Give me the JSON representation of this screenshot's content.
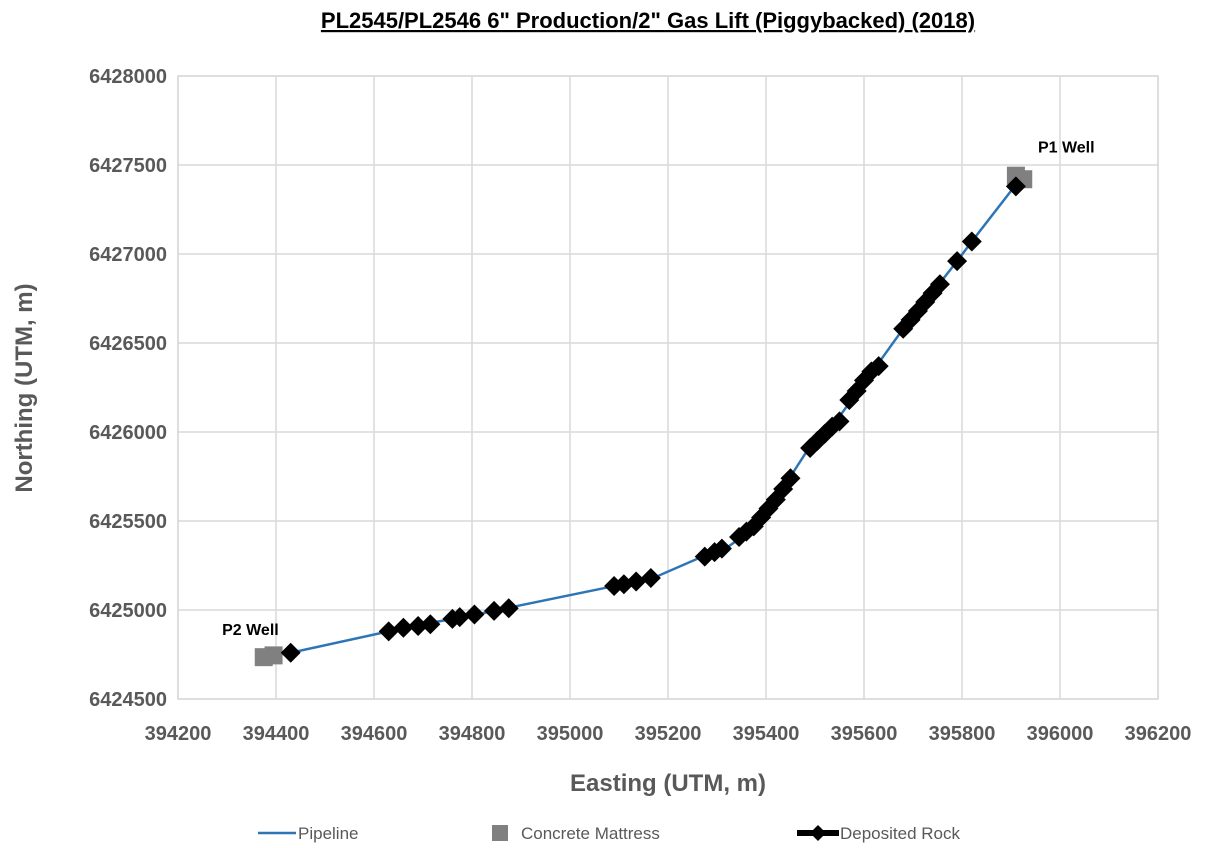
{
  "chart_data": {
    "type": "scatter",
    "title": "PL2545/PL2546 6\" Production/2\" Gas Lift (Piggybacked) (2018)",
    "xlabel": "Easting (UTM, m)",
    "ylabel": "Northing (UTM, m)",
    "xlim": [
      394200,
      396200
    ],
    "ylim": [
      6424500,
      6428000
    ],
    "xticks": [
      394200,
      394400,
      394600,
      394800,
      395000,
      395200,
      395400,
      395600,
      395800,
      396000,
      396200
    ],
    "yticks": [
      6424500,
      6425000,
      6425500,
      6426000,
      6426500,
      6427000,
      6427500,
      6428000
    ],
    "grid": true,
    "legend_position": "bottom",
    "series": [
      {
        "name": "Pipeline",
        "kind": "line",
        "color": "#2E75B6",
        "points": [
          [
            394380,
            6424740
          ],
          [
            394430,
            6424760
          ],
          [
            394630,
            6424880
          ],
          [
            394700,
            6424920
          ],
          [
            394800,
            6424970
          ],
          [
            394870,
            6425010
          ],
          [
            395100,
            6425140
          ],
          [
            395170,
            6425180
          ],
          [
            395270,
            6425300
          ],
          [
            395320,
            6425350
          ],
          [
            395370,
            6425450
          ],
          [
            395410,
            6425580
          ],
          [
            395450,
            6425750
          ],
          [
            395490,
            6425920
          ],
          [
            395540,
            6426050
          ],
          [
            395580,
            6426200
          ],
          [
            395620,
            6426350
          ],
          [
            395680,
            6426580
          ],
          [
            395720,
            6426700
          ],
          [
            395750,
            6426820
          ],
          [
            395790,
            6426960
          ],
          [
            395820,
            6427070
          ],
          [
            395910,
            6427390
          ]
        ]
      },
      {
        "name": "Concrete Mattress",
        "kind": "marker",
        "marker": "square",
        "color": "#808080",
        "points": [
          [
            394375,
            6424735
          ],
          [
            394395,
            6424745
          ],
          [
            395910,
            6427440
          ],
          [
            395925,
            6427420
          ]
        ]
      },
      {
        "name": "Deposited Rock",
        "kind": "marker",
        "marker": "diamond",
        "color": "#000000",
        "points": [
          [
            394430,
            6424760
          ],
          [
            394630,
            6424880
          ],
          [
            394660,
            6424900
          ],
          [
            394690,
            6424910
          ],
          [
            394715,
            6424920
          ],
          [
            394760,
            6424950
          ],
          [
            394775,
            6424960
          ],
          [
            394805,
            6424975
          ],
          [
            394845,
            6424995
          ],
          [
            394875,
            6425010
          ],
          [
            395090,
            6425135
          ],
          [
            395110,
            6425145
          ],
          [
            395135,
            6425160
          ],
          [
            395165,
            6425180
          ],
          [
            395275,
            6425300
          ],
          [
            395295,
            6425325
          ],
          [
            395310,
            6425345
          ],
          [
            395345,
            6425410
          ],
          [
            395360,
            6425440
          ],
          [
            395375,
            6425470
          ],
          [
            395390,
            6425520
          ],
          [
            395405,
            6425570
          ],
          [
            395420,
            6425620
          ],
          [
            395435,
            6425680
          ],
          [
            395450,
            6425740
          ],
          [
            395490,
            6425910
          ],
          [
            395505,
            6425950
          ],
          [
            395520,
            6425990
          ],
          [
            395535,
            6426030
          ],
          [
            395550,
            6426060
          ],
          [
            395570,
            6426180
          ],
          [
            395585,
            6426230
          ],
          [
            395600,
            6426290
          ],
          [
            395615,
            6426340
          ],
          [
            395630,
            6426370
          ],
          [
            395680,
            6426580
          ],
          [
            395695,
            6426630
          ],
          [
            395710,
            6426680
          ],
          [
            395725,
            6426730
          ],
          [
            395740,
            6426780
          ],
          [
            395755,
            6426830
          ],
          [
            395790,
            6426960
          ],
          [
            395820,
            6427070
          ],
          [
            395910,
            6427380
          ]
        ]
      }
    ],
    "annotations": [
      {
        "text": "P1 Well",
        "x": 395955,
        "y": 6427570
      },
      {
        "text": "P2 Well",
        "x": 394290,
        "y": 6424860
      }
    ]
  }
}
